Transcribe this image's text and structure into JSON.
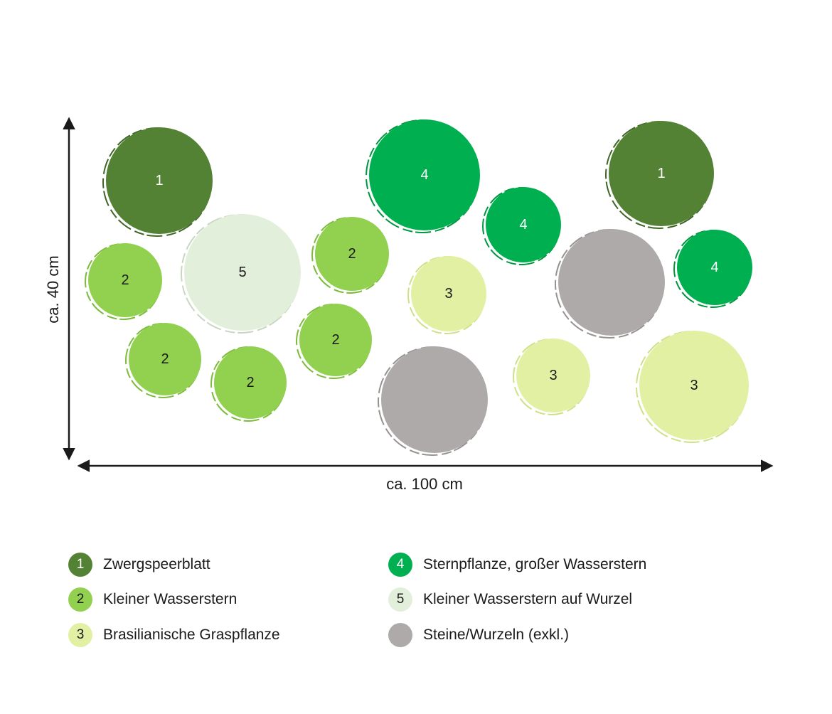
{
  "dimensions": {
    "height_label": "ca. 40 cm",
    "width_label": "ca. 100 cm"
  },
  "categories": {
    "1": {
      "number": "1",
      "label": "Zwergspeerblatt",
      "color": "#548235",
      "text_color": "#ffffff",
      "edge": "#3f6627"
    },
    "2": {
      "number": "2",
      "label": "Kleiner Wasserstern",
      "color": "#92d050",
      "text_color": "#1a1a1a",
      "edge": "#7cbb3c"
    },
    "3": {
      "number": "3",
      "label": "Brasilianische Graspflanze",
      "color": "#e2f0a4",
      "text_color": "#1a1a1a",
      "edge": "#cfe08a"
    },
    "4": {
      "number": "4",
      "label": "Sternpflanze, großer Wasserstern",
      "color": "#00b050",
      "text_color": "#ffffff",
      "edge": "#00963f"
    },
    "5": {
      "number": "5",
      "label": "Kleiner Wasserstern auf Wurzel",
      "color": "#e2efda",
      "text_color": "#1a1a1a",
      "edge": "#c9d6c2"
    },
    "stone": {
      "number": "",
      "label": "Steine/Wurzeln (exkl.)",
      "color": "#aeaaaa",
      "text_color": "#1a1a1a",
      "edge": "#969292"
    }
  },
  "legend": {
    "left_column": [
      "1",
      "2",
      "3"
    ],
    "right_column": [
      "4",
      "5",
      "stone"
    ]
  }
}
